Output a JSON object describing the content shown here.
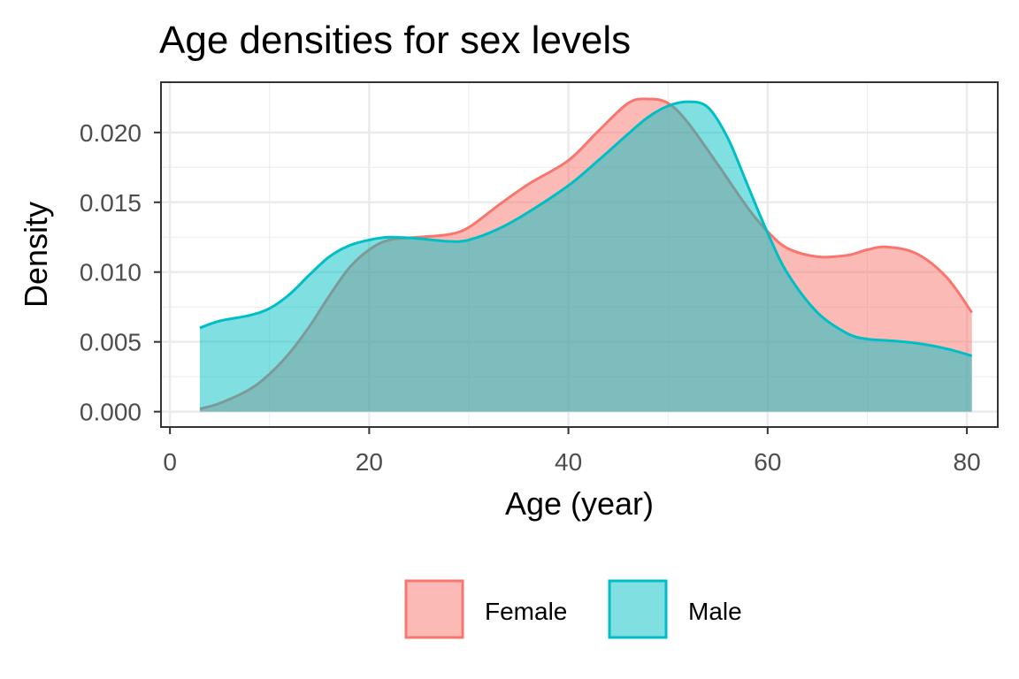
{
  "chart_data": {
    "type": "area",
    "title": "Age densities for sex levels",
    "xlabel": "Age (year)",
    "ylabel": "Density",
    "xlim": [
      -0.9,
      83.1
    ],
    "ylim": [
      -0.0011,
      0.0236
    ],
    "xticks": [
      0,
      20,
      40,
      60,
      80
    ],
    "xtick_labels": [
      "0",
      "20",
      "40",
      "60",
      "80"
    ],
    "yticks": [
      0,
      0.005,
      0.01,
      0.015,
      0.02
    ],
    "ytick_labels": [
      "0.000",
      "0.005",
      "0.010",
      "0.015",
      "0.020"
    ],
    "grid": true,
    "legend_position": "bottom",
    "series": [
      {
        "name": "Female",
        "color": "#F8766D",
        "x": [
          3,
          5,
          8,
          10,
          12,
          14,
          16,
          18,
          20,
          22,
          25,
          28,
          30,
          33,
          36,
          40,
          43,
          46,
          48,
          50,
          52,
          55,
          58,
          60,
          62,
          65,
          68,
          70,
          72,
          75,
          78,
          80.5
        ],
        "y": [
          0.0002,
          0.0006,
          0.0016,
          0.0027,
          0.0042,
          0.0061,
          0.0083,
          0.0103,
          0.0116,
          0.0123,
          0.0125,
          0.0127,
          0.0132,
          0.0148,
          0.0163,
          0.018,
          0.0201,
          0.0221,
          0.0224,
          0.0221,
          0.0207,
          0.0177,
          0.0146,
          0.0129,
          0.0117,
          0.0111,
          0.0112,
          0.0116,
          0.0118,
          0.0113,
          0.0096,
          0.0071
        ]
      },
      {
        "name": "Male",
        "color": "#00BFC4",
        "x": [
          3,
          5,
          8,
          10,
          12,
          14,
          16,
          18,
          20,
          22,
          25,
          28,
          30,
          33,
          36,
          40,
          43,
          46,
          48,
          50,
          52,
          54,
          56,
          58,
          60,
          62,
          65,
          68,
          70,
          72,
          75,
          78,
          80.5
        ],
        "y": [
          0.006,
          0.0065,
          0.0069,
          0.0074,
          0.0084,
          0.0098,
          0.0111,
          0.0119,
          0.0123,
          0.0125,
          0.0124,
          0.0122,
          0.0123,
          0.0131,
          0.0143,
          0.0162,
          0.018,
          0.0199,
          0.0211,
          0.0219,
          0.0222,
          0.0218,
          0.0196,
          0.0162,
          0.0128,
          0.0099,
          0.0071,
          0.0056,
          0.0052,
          0.0051,
          0.0049,
          0.0045,
          0.004
        ]
      }
    ]
  }
}
